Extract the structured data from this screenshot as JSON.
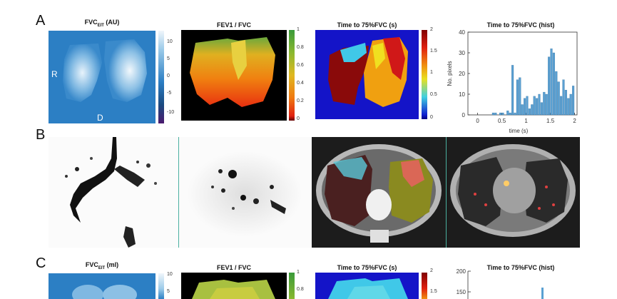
{
  "panels": {
    "A": {
      "letter": "A",
      "fvc_title_main": "FVC",
      "fvc_title_sub": "EIT",
      "fvc_title_unit": " (AU)",
      "fvc_cbar_ticks": [
        "10",
        "5",
        "0",
        "-5",
        "-10"
      ],
      "label_right": "R",
      "label_dorsal": "D",
      "fev_title": "FEV1 / FVC",
      "fev_cbar_ticks": [
        "1",
        "0.8",
        "0.6",
        "0.4",
        "0.2",
        "0"
      ],
      "t75_title": "Time to 75%FVC (s)",
      "t75_cbar_ticks": [
        "2",
        "1.5",
        "1",
        "0.5",
        "0"
      ],
      "hist_title": "Time to 75%FVC (hist)",
      "hist_xlabel": "time (s)",
      "hist_ylabel": "No. pixels"
    },
    "B": {
      "letter": "B"
    },
    "C": {
      "letter": "C",
      "fvc_title_main": "FVC",
      "fvc_title_sub": "EIT",
      "fvc_title_unit": " (ml)",
      "fvc_cbar_ticks": [
        "10",
        "5"
      ],
      "fev_title": "FEV1 / FVC",
      "fev_cbar_ticks": [
        "1",
        "0.8"
      ],
      "t75_title": "Time to 75%FVC (s)",
      "t75_cbar_ticks": [
        "2",
        "1.5"
      ],
      "hist_title": "Time to 75%FVC (hist)",
      "hist_yticks": [
        "200",
        "150"
      ]
    }
  },
  "colors": {
    "eit_blue": "#2c7fc4",
    "black": "#000000",
    "hist_bar": "#5aa0d2"
  },
  "chart_data": [
    {
      "type": "bar",
      "title": "Time to 75%FVC (hist)",
      "xlabel": "time (s)",
      "ylabel": "No. pixels",
      "xlim": [
        -0.2,
        2.05
      ],
      "ylim": [
        0,
        40
      ],
      "xticks": [
        "0",
        "0.5",
        "1",
        "1.5",
        "2"
      ],
      "yticks": [
        "0",
        "10",
        "20",
        "30",
        "40"
      ],
      "bin_width": 0.05,
      "x": [
        0.25,
        0.3,
        0.35,
        0.4,
        0.45,
        0.5,
        0.55,
        0.6,
        0.65,
        0.7,
        0.75,
        0.8,
        0.85,
        0.9,
        0.95,
        1.0,
        1.05,
        1.1,
        1.15,
        1.2,
        1.25,
        1.3,
        1.35,
        1.4,
        1.45,
        1.5,
        1.55,
        1.6,
        1.65,
        1.7,
        1.75,
        1.8,
        1.85,
        1.9,
        1.95
      ],
      "values": [
        0,
        1,
        1,
        0,
        1,
        1,
        0,
        2,
        1,
        24,
        1,
        17,
        18,
        5,
        8,
        9,
        3,
        5,
        9,
        8,
        10,
        6,
        11,
        10,
        28,
        32,
        30,
        21,
        16,
        9,
        17,
        12,
        8,
        10,
        14
      ]
    }
  ]
}
